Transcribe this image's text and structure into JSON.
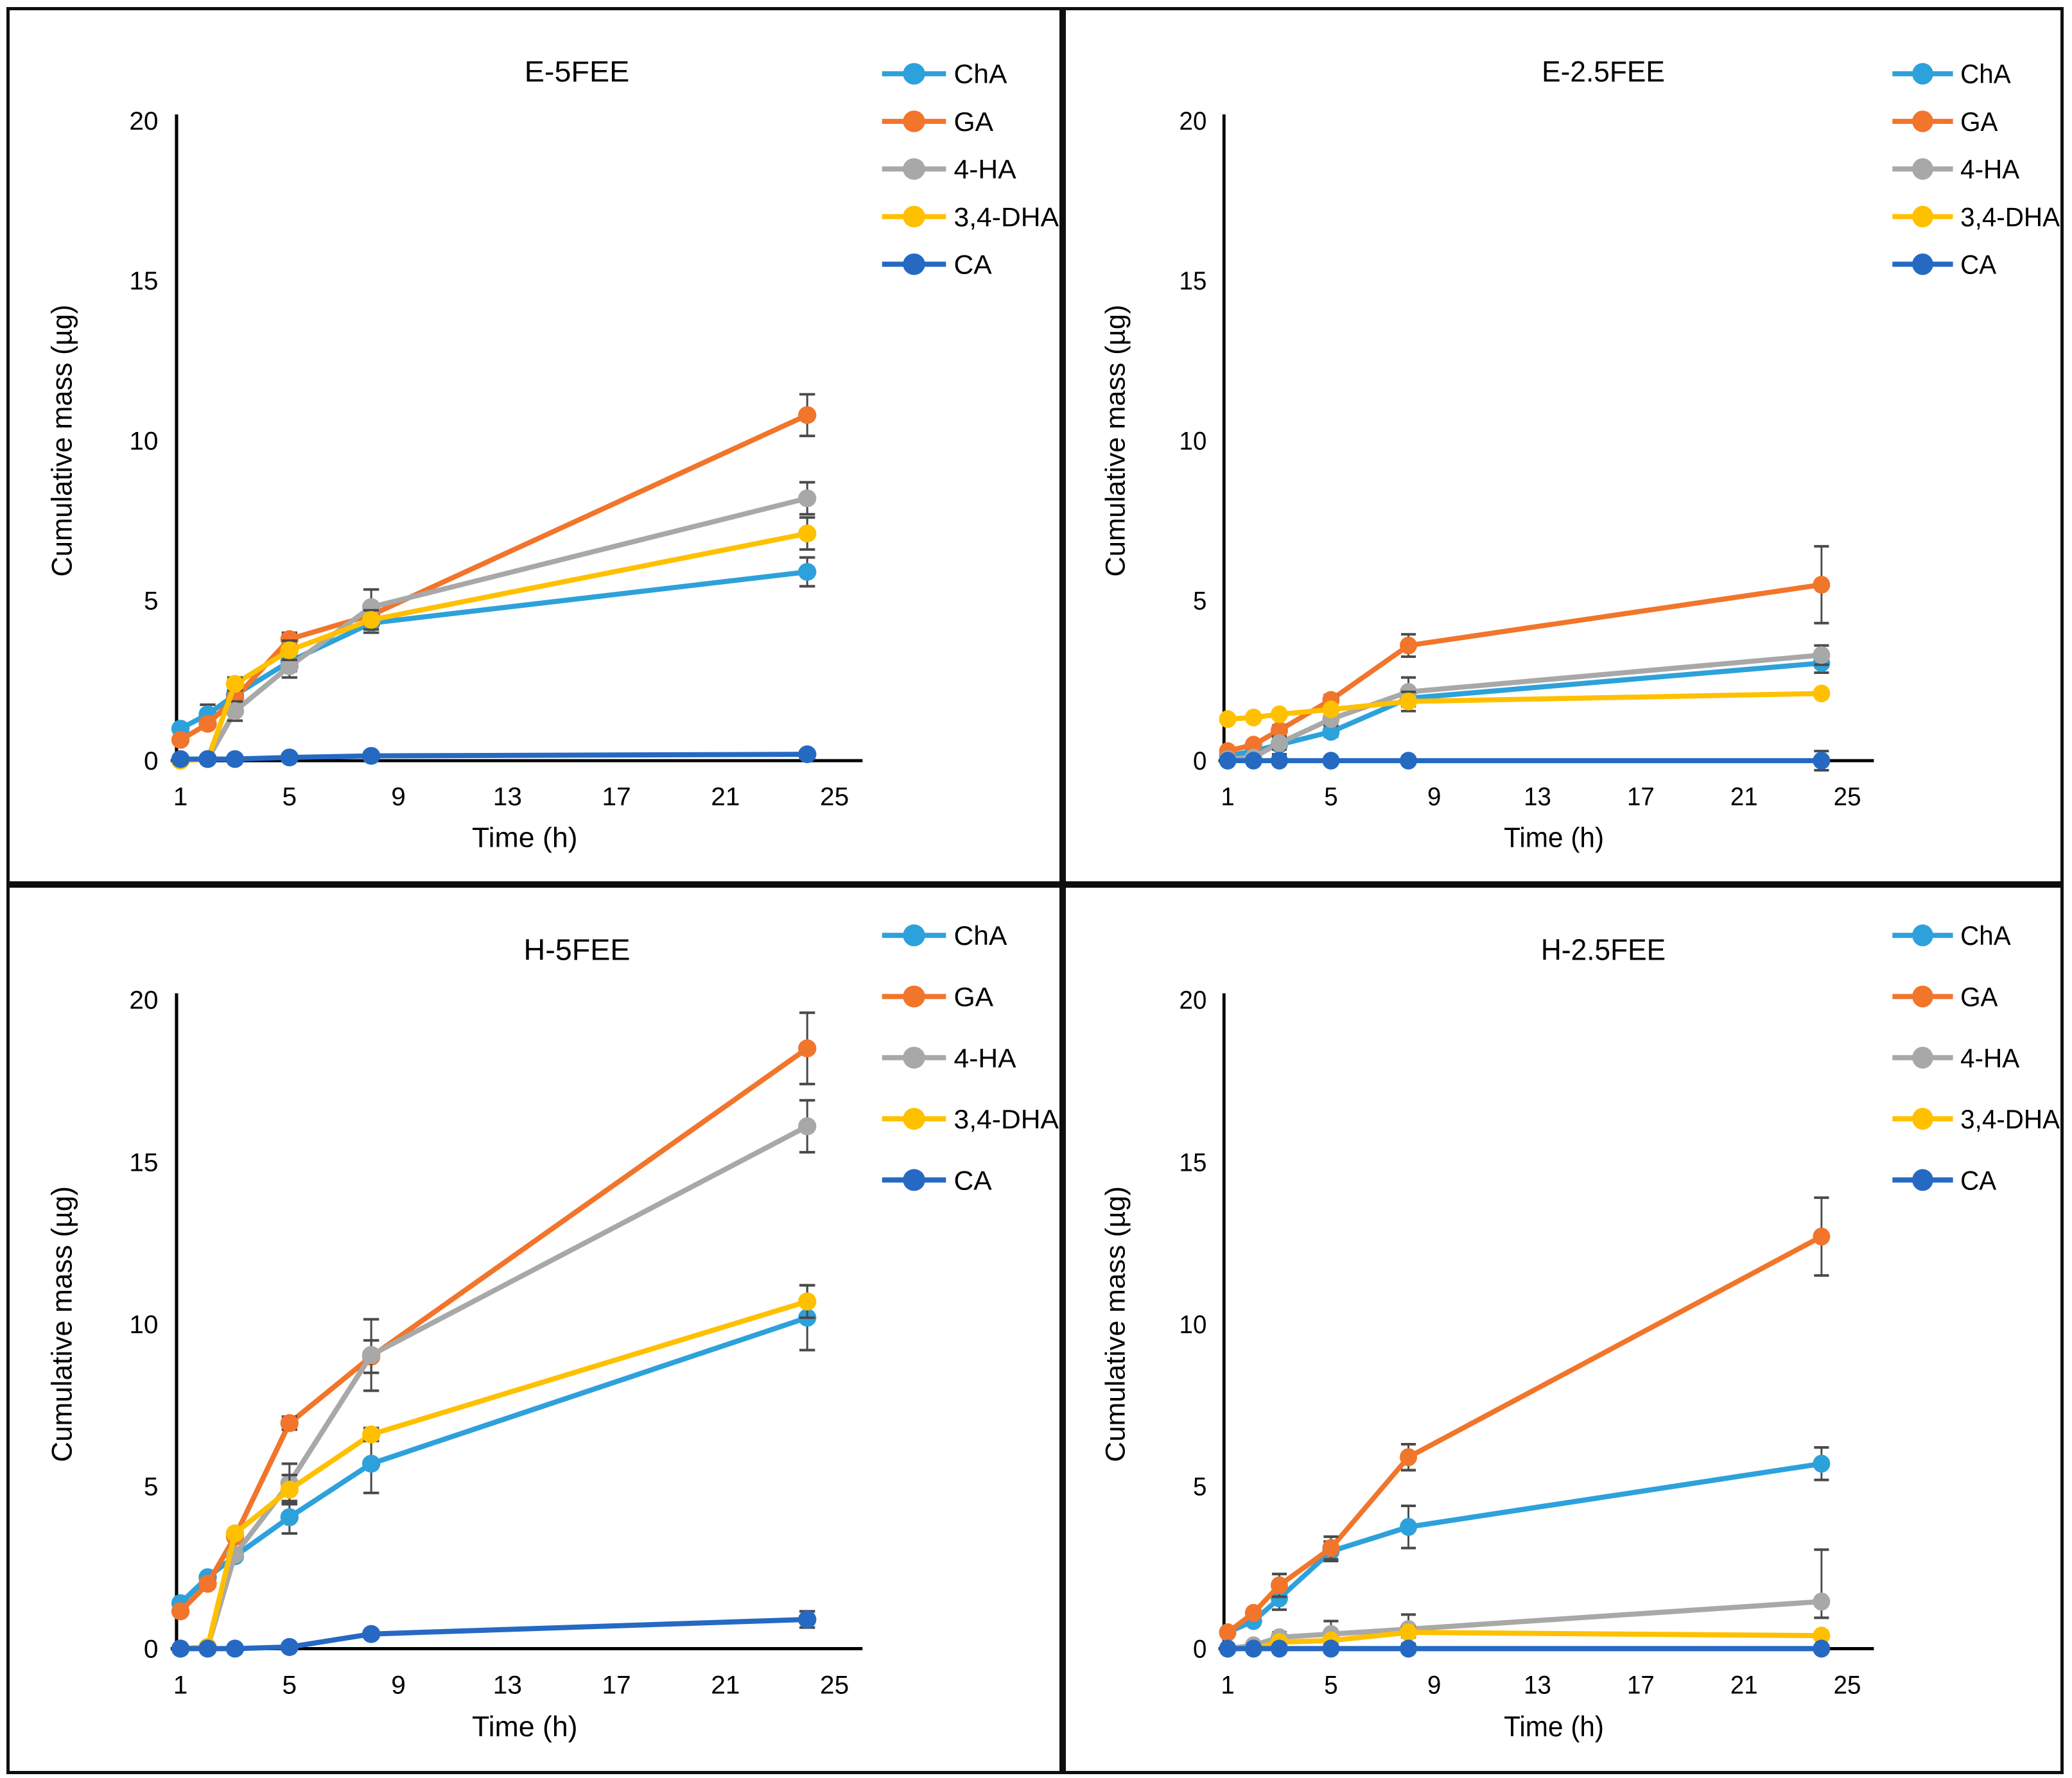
{
  "figure": {
    "background": "#ffffff",
    "border_color": "#0f0f0f",
    "text_color": "#000000",
    "error_bar_color": "#4a4a4a"
  },
  "chart_data": [
    {
      "type": "line",
      "title": "E-5FEE",
      "axes": {
        "xlabel": "Time (h)",
        "ylabel": "Cumulative mass (µg)",
        "xticks": [
          1,
          5,
          9,
          13,
          17,
          21,
          25
        ],
        "yticks": [
          0,
          5,
          10,
          15,
          20
        ],
        "xlim": [
          1,
          25
        ],
        "ylim": [
          0,
          20
        ],
        "grid": false,
        "legend_position": "right"
      },
      "x": [
        1,
        2,
        3,
        5,
        8,
        24
      ],
      "series": [
        {
          "name": "ChA",
          "color": "#2DA1DB",
          "values": [
            1.0,
            1.45,
            2.05,
            3.1,
            4.3,
            5.9
          ],
          "errors": [
            0.1,
            0.3,
            0.15,
            0.3,
            0.3,
            0.45
          ]
        },
        {
          "name": "GA",
          "color": "#F1752B",
          "values": [
            0.65,
            1.15,
            1.95,
            3.8,
            4.55,
            10.8
          ],
          "errors": [
            0.1,
            0.1,
            0.25,
            0.2,
            0.25,
            0.65
          ]
        },
        {
          "name": "4-HA",
          "color": "#A8A8A8",
          "values": [
            0.0,
            0.05,
            1.55,
            2.95,
            4.8,
            8.2
          ],
          "errors": [
            0,
            0,
            0.3,
            0.35,
            0.55,
            0.5
          ]
        },
        {
          "name": "3,4-DHA",
          "color": "#FFC000",
          "values": [
            0.0,
            0.05,
            2.4,
            3.45,
            4.4,
            7.1
          ],
          "errors": [
            0,
            0,
            0.2,
            0.3,
            0.3,
            0.5
          ]
        },
        {
          "name": "CA",
          "color": "#2569C3",
          "values": [
            0.05,
            0.05,
            0.05,
            0.1,
            0.15,
            0.2
          ],
          "errors": [
            0,
            0,
            0,
            0,
            0,
            0.1
          ]
        }
      ]
    },
    {
      "type": "line",
      "title": "E-2.5FEE",
      "axes": {
        "xlabel": "Time (h)",
        "ylabel": "Cumulative mass (µg)",
        "xticks": [
          1,
          5,
          9,
          13,
          17,
          21,
          25
        ],
        "yticks": [
          0,
          5,
          10,
          15,
          20
        ],
        "xlim": [
          1,
          25
        ],
        "ylim": [
          0,
          20
        ],
        "grid": false,
        "legend_position": "right"
      },
      "x": [
        1,
        2,
        3,
        5,
        8,
        24
      ],
      "series": [
        {
          "name": "ChA",
          "color": "#2DA1DB",
          "values": [
            0.15,
            0.3,
            0.5,
            0.9,
            1.95,
            3.05
          ],
          "errors": [
            0,
            0,
            0.3,
            0.15,
            0.2,
            0.3
          ]
        },
        {
          "name": "GA",
          "color": "#F1752B",
          "values": [
            0.3,
            0.5,
            0.95,
            1.9,
            3.6,
            5.5
          ],
          "errors": [
            0,
            0,
            0.15,
            0.15,
            0.35,
            1.2
          ]
        },
        {
          "name": "4-HA",
          "color": "#A8A8A8",
          "values": [
            0.05,
            0.1,
            0.55,
            1.3,
            2.15,
            3.3
          ],
          "errors": [
            0,
            0,
            0.2,
            0.2,
            0.45,
            0.3
          ]
        },
        {
          "name": "3,4-DHA",
          "color": "#FFC000",
          "values": [
            1.3,
            1.35,
            1.45,
            1.6,
            1.85,
            2.1
          ],
          "errors": [
            0,
            0,
            0,
            0,
            0.3,
            0
          ]
        },
        {
          "name": "CA",
          "color": "#2569C3",
          "values": [
            0,
            0,
            0,
            0,
            0,
            0
          ],
          "errors": [
            0,
            0,
            0,
            0,
            0,
            0.3
          ]
        }
      ]
    },
    {
      "type": "line",
      "title": "H-5FEE",
      "axes": {
        "xlabel": "Time (h)",
        "ylabel": "Cumulative mass (µg)",
        "xticks": [
          1,
          5,
          9,
          13,
          17,
          21,
          25
        ],
        "yticks": [
          0,
          5,
          10,
          15,
          20
        ],
        "xlim": [
          1,
          25
        ],
        "ylim": [
          0,
          20
        ],
        "grid": false,
        "legend_position": "right"
      },
      "x": [
        1,
        2,
        3,
        5,
        8,
        24
      ],
      "series": [
        {
          "name": "ChA",
          "color": "#2DA1DB",
          "values": [
            1.4,
            2.2,
            2.85,
            4.05,
            5.7,
            10.2
          ],
          "errors": [
            0,
            0,
            0,
            0.5,
            0.9,
            1.0
          ]
        },
        {
          "name": "GA",
          "color": "#F1752B",
          "values": [
            1.15,
            2.0,
            3.45,
            6.95,
            9.0,
            18.5
          ],
          "errors": [
            0,
            0,
            0,
            0.2,
            0.5,
            1.1
          ]
        },
        {
          "name": "4-HA",
          "color": "#A8A8A8",
          "values": [
            0.0,
            0.05,
            2.9,
            5.1,
            9.05,
            16.1
          ],
          "errors": [
            0,
            0,
            0,
            0.6,
            1.1,
            0.8
          ]
        },
        {
          "name": "3,4-DHA",
          "color": "#FFC000",
          "values": [
            0.0,
            0.05,
            3.55,
            4.9,
            6.6,
            10.7
          ],
          "errors": [
            0,
            0,
            0,
            0.45,
            0.2,
            0.5
          ]
        },
        {
          "name": "CA",
          "color": "#2569C3",
          "values": [
            0,
            0,
            0,
            0.05,
            0.45,
            0.9
          ],
          "errors": [
            0,
            0,
            0,
            0,
            0,
            0.25
          ]
        }
      ]
    },
    {
      "type": "line",
      "title": "H-2.5FEE",
      "axes": {
        "xlabel": "Time (h)",
        "ylabel": "Cumulative mass (µg)",
        "xticks": [
          1,
          5,
          9,
          13,
          17,
          21,
          25
        ],
        "yticks": [
          0,
          5,
          10,
          15,
          20
        ],
        "xlim": [
          1,
          25
        ],
        "ylim": [
          0,
          20
        ],
        "grid": false,
        "legend_position": "right"
      },
      "x": [
        1,
        2,
        3,
        5,
        8,
        24
      ],
      "series": [
        {
          "name": "ChA",
          "color": "#2DA1DB",
          "values": [
            0.5,
            0.85,
            1.55,
            3.0,
            3.75,
            5.7
          ],
          "errors": [
            0,
            0,
            0.35,
            0.3,
            0.65,
            0.5
          ]
        },
        {
          "name": "GA",
          "color": "#F1752B",
          "values": [
            0.5,
            1.1,
            1.95,
            3.1,
            5.9,
            12.7
          ],
          "errors": [
            0,
            0,
            0.35,
            0.35,
            0.4,
            1.2
          ]
        },
        {
          "name": "4-HA",
          "color": "#A8A8A8",
          "values": [
            0.0,
            0.1,
            0.35,
            0.45,
            0.6,
            1.45
          ],
          "errors": [
            0,
            0,
            0.15,
            0.4,
            0.45,
            1.6
          ],
          "errors_low": [
            0,
            0,
            0.15,
            0.4,
            0.45,
            0.5
          ]
        },
        {
          "name": "3,4-DHA",
          "color": "#FFC000",
          "values": [
            0.0,
            0.0,
            0.2,
            0.25,
            0.5,
            0.4
          ],
          "errors": [
            0,
            0,
            0,
            0,
            0.15,
            0
          ]
        },
        {
          "name": "CA",
          "color": "#2569C3",
          "values": [
            0,
            0,
            0,
            0,
            0,
            0
          ],
          "errors": [
            0,
            0,
            0,
            0,
            0,
            0
          ]
        }
      ]
    }
  ]
}
